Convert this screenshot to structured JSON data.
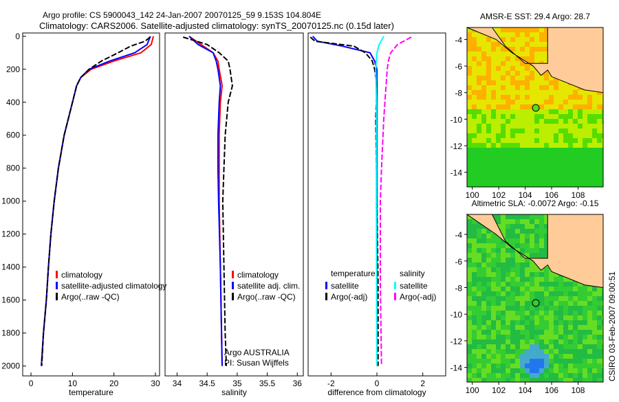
{
  "title": {
    "line1": "Argo profile: CS 5900043_142 24-Jan-2007 20070125_59 9.153S 104.804E",
    "line2": "Climatology: CARS2006. Satellite-adjusted climatology: synTS_20070125.nc (0.15d later)"
  },
  "credit": "CSIRO 03-Feb-2007 09:00:51",
  "colors": {
    "climatology": "#ff0000",
    "satellite": "#0000ff",
    "argo": "#000000",
    "sat_salinity": "#00ffff",
    "argo_salinity": "#ff00ff",
    "land": "#ffcc99"
  },
  "chart_data": [
    {
      "type": "line",
      "id": "temperature",
      "xlabel": "temperature",
      "ylabel": "",
      "xlim": [
        -2,
        31
      ],
      "ylim": [
        2060,
        -20
      ],
      "xticks": [
        "0",
        "10",
        "20",
        "30"
      ],
      "xtick_values": [
        0,
        10,
        20,
        30
      ],
      "yticks": [
        "0",
        "200",
        "400",
        "600",
        "800",
        "1000",
        "1200",
        "1400",
        "1600",
        "1800",
        "2000"
      ],
      "ytick_values": [
        0,
        200,
        400,
        600,
        800,
        1000,
        1200,
        1400,
        1600,
        1800,
        2000
      ],
      "legend": [
        "climatology",
        "satellite-adjusted climatology",
        "Argo(..raw -QC)"
      ],
      "series": [
        {
          "name": "climatology",
          "color": "#ff0000",
          "depth": [
            0,
            50,
            100,
            150,
            200,
            250,
            300,
            400,
            600,
            800,
            1000,
            1200,
            1400,
            1600,
            1800,
            2000
          ],
          "values": [
            29.5,
            29,
            26.5,
            20,
            14.5,
            12,
            11,
            10,
            8,
            6.6,
            5.6,
            4.8,
            4.2,
            3.7,
            3.0,
            2.5
          ]
        },
        {
          "name": "satellite-adjusted climatology",
          "color": "#0000ff",
          "depth": [
            0,
            50,
            100,
            150,
            200,
            250,
            300,
            400,
            600,
            800,
            1000,
            1200,
            1400,
            1600,
            1800,
            2000
          ],
          "values": [
            28.8,
            28,
            25,
            19,
            14,
            12,
            11,
            10,
            8,
            6.6,
            5.6,
            4.8,
            4.2,
            3.7,
            3.0,
            2.5
          ]
        },
        {
          "name": "Argo(..raw -QC)",
          "color": "#000000",
          "depth": [
            5,
            30,
            60,
            100,
            150,
            200,
            250,
            300,
            400,
            600,
            800,
            1000,
            1200,
            1400,
            1600,
            1800,
            2000
          ],
          "values": [
            28.7,
            27.5,
            24,
            21,
            17,
            14,
            12,
            11,
            10,
            8,
            6.6,
            5.6,
            4.8,
            4.2,
            3.7,
            3.0,
            2.6
          ]
        }
      ]
    },
    {
      "type": "line",
      "id": "salinity",
      "xlabel": "salinity",
      "xlim": [
        33.8,
        36.1
      ],
      "ylim": [
        2060,
        -20
      ],
      "xticks": [
        "34",
        "34.5",
        "35",
        "35.5",
        "36"
      ],
      "xtick_values": [
        34,
        34.5,
        35,
        35.5,
        36
      ],
      "legend": [
        "climatology",
        "satellite adj. clim.",
        "Argo(..raw -QC)"
      ],
      "annotation": [
        "Argo AUSTRALIA",
        "PI: Susan Wijffels"
      ],
      "series": [
        {
          "name": "climatology",
          "color": "#ff0000",
          "depth": [
            0,
            50,
            100,
            150,
            200,
            300,
            400,
            600,
            800,
            1000,
            1400,
            1800,
            2000
          ],
          "values": [
            34.2,
            34.4,
            34.6,
            34.68,
            34.7,
            34.75,
            34.72,
            34.7,
            34.7,
            34.7,
            34.72,
            34.74,
            34.75
          ]
        },
        {
          "name": "satellite adj. clim.",
          "color": "#0000ff",
          "depth": [
            0,
            50,
            100,
            150,
            200,
            300,
            400,
            600,
            800,
            1000,
            1400,
            1800,
            2000
          ],
          "values": [
            34.2,
            34.35,
            34.6,
            34.65,
            34.68,
            34.72,
            34.7,
            34.68,
            34.68,
            34.69,
            34.72,
            34.74,
            34.75
          ]
        },
        {
          "name": "Argo(..raw -QC)",
          "color": "#000000",
          "depth": [
            5,
            50,
            100,
            150,
            200,
            300,
            400,
            600,
            800,
            1000,
            1400,
            1800,
            2000
          ],
          "values": [
            34.1,
            34.5,
            34.7,
            34.85,
            34.88,
            34.92,
            34.85,
            34.8,
            34.78,
            34.76,
            34.78,
            34.8,
            34.82
          ]
        }
      ]
    },
    {
      "type": "line",
      "id": "difference",
      "xlabel": "difference from climatology",
      "xlim": [
        -3,
        3
      ],
      "ylim": [
        2060,
        -20
      ],
      "xticks": [
        "-2",
        "0",
        "2"
      ],
      "xtick_values": [
        -2,
        0,
        2
      ],
      "legend_temperature": {
        "title": "temperature",
        "items": [
          "satellite",
          "Argo(-adj)"
        ]
      },
      "legend_salinity": {
        "title": "salinity",
        "items": [
          "satellite",
          "Argo(-adj)"
        ]
      },
      "series": [
        {
          "name": "temperature satellite",
          "color": "#0000ff",
          "depth": [
            0,
            30,
            60,
            100,
            150,
            200,
            300,
            500,
            1000,
            2000
          ],
          "values": [
            -2.8,
            -2.6,
            -1.5,
            -0.3,
            -0.1,
            0,
            0,
            0,
            0,
            0
          ]
        },
        {
          "name": "temperature Argo(-adj)",
          "color": "#000000",
          "depth": [
            5,
            30,
            60,
            100,
            150,
            200,
            300,
            500,
            1000,
            1500,
            2000
          ],
          "values": [
            -2.9,
            -2.7,
            -1.0,
            -0.5,
            -0.2,
            -0.1,
            0,
            -0.05,
            0,
            0.05,
            0.05
          ]
        },
        {
          "name": "salinity satellite",
          "color": "#00ffff",
          "depth": [
            0,
            50,
            100,
            200,
            400,
            1000,
            2000
          ],
          "values": [
            0.3,
            0.1,
            0,
            -0.05,
            -0.02,
            -0.02,
            0
          ]
        },
        {
          "name": "salinity Argo(-adj)",
          "color": "#ff00ff",
          "depth": [
            5,
            50,
            100,
            150,
            200,
            300,
            500,
            800,
            1000,
            1500,
            2000
          ],
          "values": [
            1.5,
            0.9,
            0.6,
            0.5,
            0.45,
            0.4,
            0.3,
            0.2,
            0.15,
            0.15,
            0.2
          ]
        }
      ]
    },
    {
      "type": "heatmap",
      "id": "sst-map",
      "title": "AMSR-E SST: 29.4 Argo: 28.7",
      "xticks": [
        "100",
        "102",
        "104",
        "106",
        "108"
      ],
      "yticks": [
        "-4",
        "-6",
        "-8",
        "-10",
        "-12",
        "-14"
      ],
      "xlim": [
        99.6,
        109.9
      ],
      "ylim": [
        -3.1,
        -15.1
      ],
      "argo_position": {
        "lon": 104.804,
        "lat": -9.153
      }
    },
    {
      "type": "heatmap",
      "id": "sla-map",
      "title": "Altimetric SLA: -0.0072 Argo: -0.15",
      "xticks": [
        "100",
        "102",
        "104",
        "106",
        "108"
      ],
      "yticks": [
        "-4",
        "-6",
        "-8",
        "-10",
        "-12",
        "-14"
      ],
      "xlim": [
        99.6,
        109.9
      ],
      "ylim": [
        -2.5,
        -15.1
      ],
      "argo_position": {
        "lon": 104.804,
        "lat": -9.153
      }
    }
  ]
}
